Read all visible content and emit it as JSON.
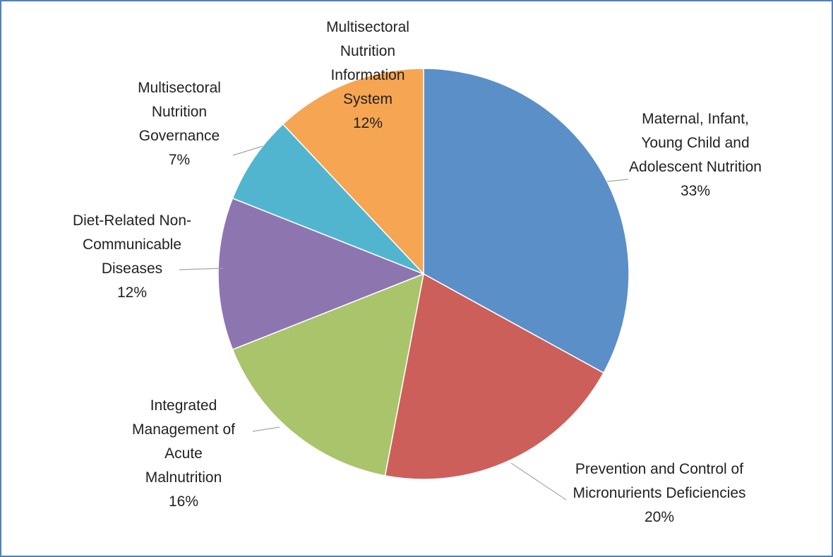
{
  "chart_data": {
    "type": "pie",
    "categories": [
      "Maternal, Infant, Young Child and Adolescent Nutrition",
      "Prevention and Control of Micronurients Deficiencies",
      "Integrated Management of Acute Malnutrition",
      "Diet-Related Non-Communicable Diseases",
      "Multisectoral Nutrition Governance",
      "Multisectoral Nutrition Information System"
    ],
    "values": [
      33,
      20,
      16,
      12,
      7,
      12
    ],
    "value_labels": [
      "33%",
      "20%",
      "16%",
      "12%",
      "7%",
      "12%"
    ],
    "colors": [
      "#5a8fc8",
      "#cd5f5a",
      "#a9c46a",
      "#8d76b0",
      "#52b5d0",
      "#f6a553"
    ]
  }
}
